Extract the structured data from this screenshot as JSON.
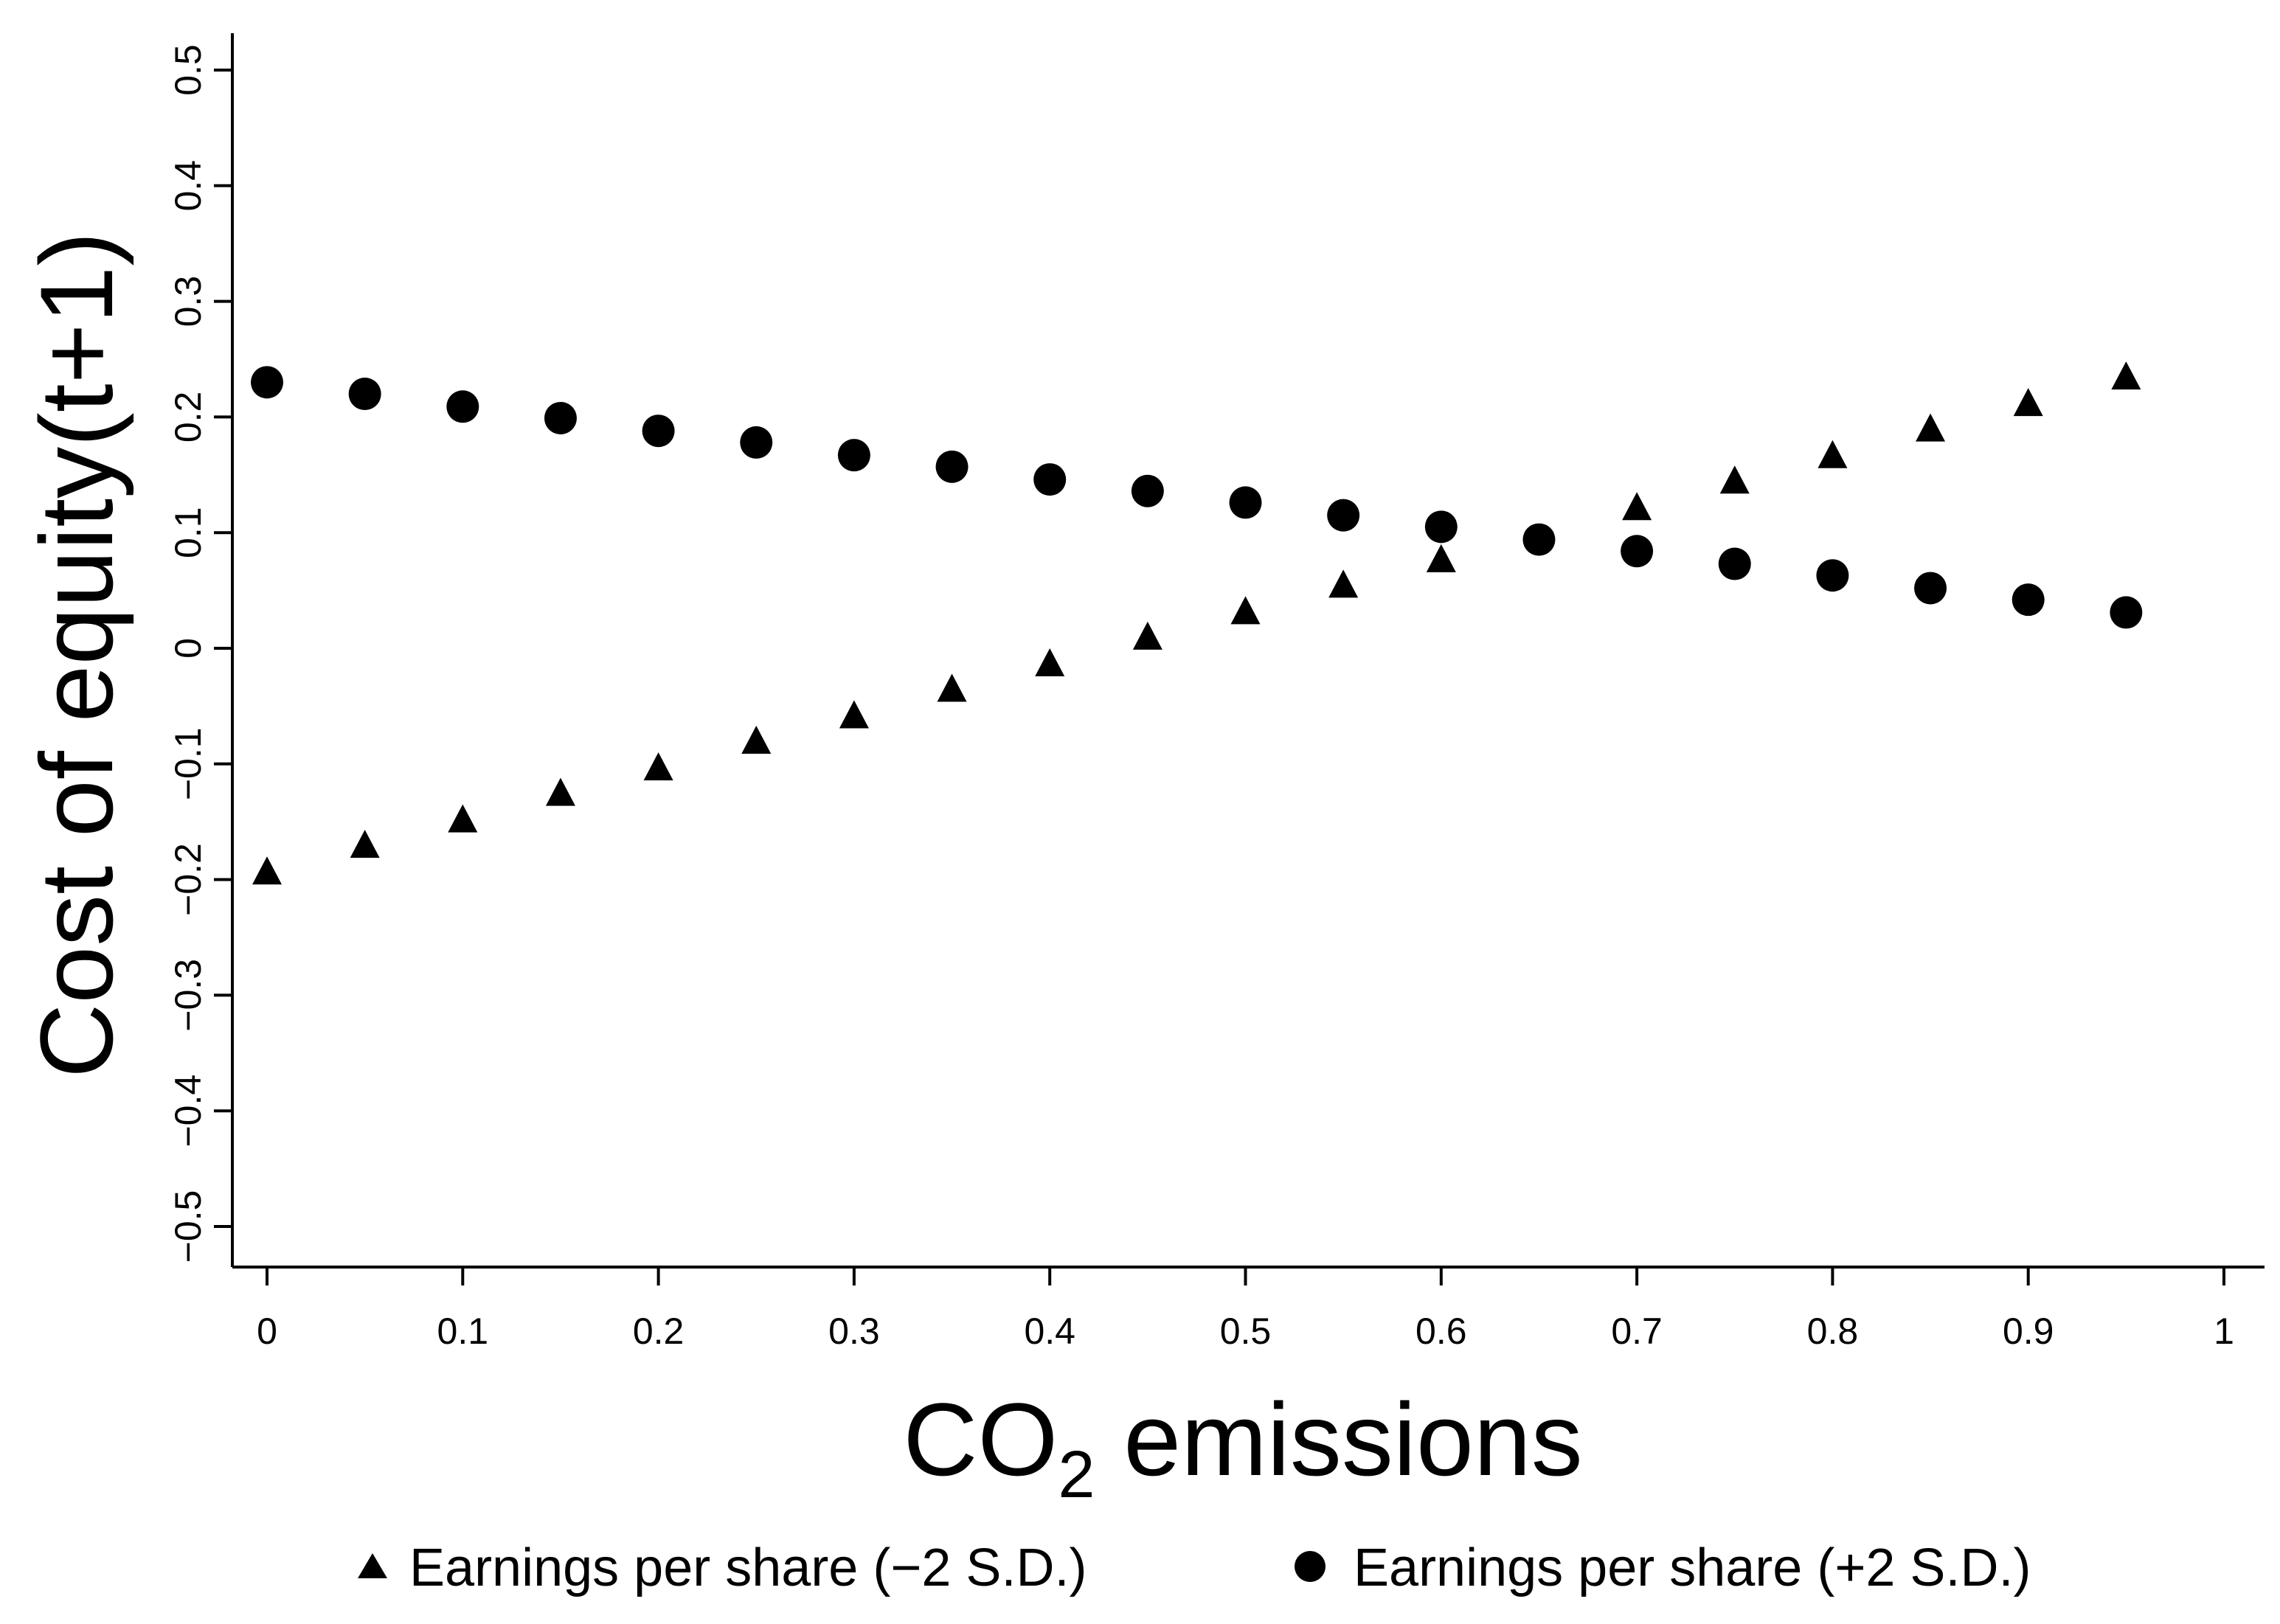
{
  "chart_data": {
    "type": "scatter",
    "title": "",
    "xlabel": "CO₂ emissions",
    "xlabel_main": "CO",
    "xlabel_sub": "2",
    "xlabel_rest": " emissions",
    "ylabel": "Cost of equity(t+1)",
    "xlim": [
      0,
      1
    ],
    "ylim": [
      -0.5,
      0.5
    ],
    "x_ticks": [
      0,
      0.1,
      0.2,
      0.3,
      0.4,
      0.5,
      0.6,
      0.7,
      0.8,
      0.9,
      1
    ],
    "x_tick_labels": [
      "0",
      "0.1",
      "0.2",
      "0.3",
      "0.4",
      "0.5",
      "0.6",
      "0.7",
      "0.8",
      "0.9",
      "1"
    ],
    "y_ticks": [
      -0.5,
      -0.4,
      -0.3,
      -0.2,
      -0.1,
      0,
      0.1,
      0.2,
      0.3,
      0.4,
      0.5
    ],
    "y_tick_labels": [
      "−0.5",
      "−0.4",
      "−0.3",
      "−0.2",
      "−0.1",
      "0",
      "0.1",
      "0.2",
      "0.3",
      "0.4",
      "0.5"
    ],
    "grid": false,
    "legend_position": "bottom",
    "x": [
      0,
      0.05,
      0.1,
      0.15,
      0.2,
      0.25,
      0.3,
      0.35,
      0.4,
      0.45,
      0.5,
      0.55,
      0.6,
      0.65,
      0.7,
      0.75,
      0.8,
      0.85,
      0.9,
      0.95
    ],
    "series": [
      {
        "name": "Earnings per share (−2 S.D.)",
        "marker": "triangle",
        "marker_icon": "triangle-marker-icon",
        "x": [
          0,
          0.05,
          0.1,
          0.15,
          0.2,
          0.25,
          0.3,
          0.35,
          0.4,
          0.45,
          0.5,
          0.55,
          0.6,
          0.7,
          0.75,
          0.8,
          0.85,
          0.9,
          0.95
        ],
        "values": [
          -0.195,
          -0.172,
          -0.15,
          -0.127,
          -0.105,
          -0.082,
          -0.06,
          -0.037,
          -0.015,
          0.008,
          0.03,
          0.053,
          0.075,
          0.12,
          0.143,
          0.165,
          0.188,
          0.21,
          0.233
        ]
      },
      {
        "name": "Earnings per share (+2 S.D.)",
        "marker": "circle",
        "marker_icon": "circle-marker-icon",
        "x": [
          0,
          0.05,
          0.1,
          0.15,
          0.2,
          0.25,
          0.3,
          0.35,
          0.4,
          0.45,
          0.5,
          0.55,
          0.6,
          0.65,
          0.7,
          0.75,
          0.8,
          0.85,
          0.9,
          0.95
        ],
        "values": [
          0.23,
          0.22,
          0.209,
          0.199,
          0.188,
          0.178,
          0.167,
          0.157,
          0.146,
          0.136,
          0.126,
          0.115,
          0.105,
          0.094,
          0.084,
          0.073,
          0.063,
          0.052,
          0.042,
          0.031
        ]
      }
    ],
    "colors": {
      "marker": "#000000",
      "axis": "#000000",
      "background": "#ffffff"
    }
  }
}
